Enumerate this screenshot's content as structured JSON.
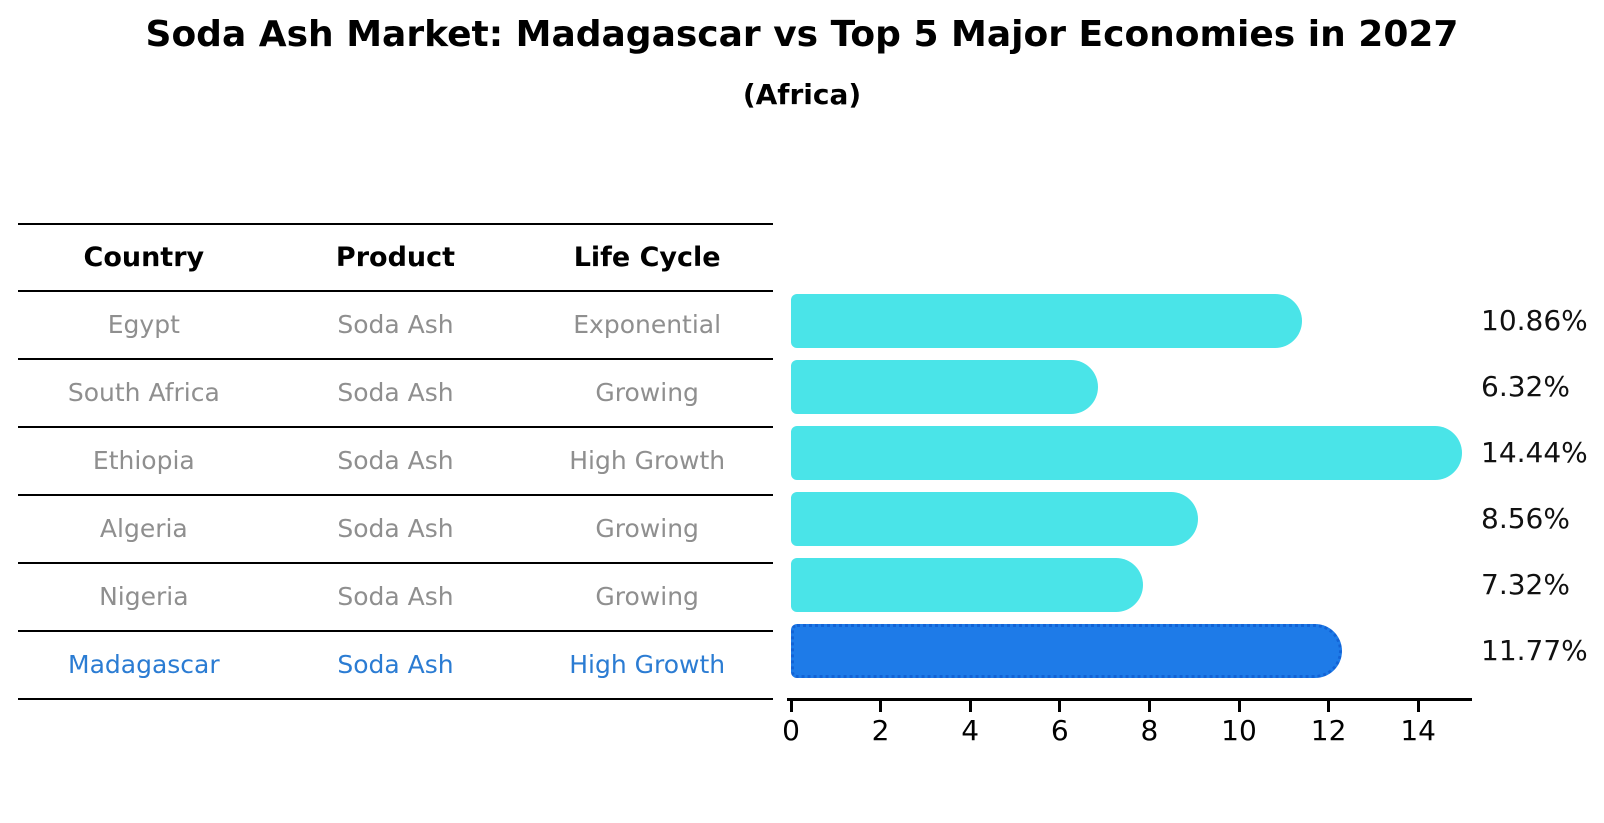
{
  "header": {
    "title": "Soda Ash Market: Madagascar vs Top 5 Major Economies in 2027",
    "subtitle": "(Africa)"
  },
  "table": {
    "columns": [
      "Country",
      "Product",
      "Life Cycle"
    ],
    "rows": [
      {
        "country": "Egypt",
        "product": "Soda Ash",
        "life_cycle": "Exponential"
      },
      {
        "country": "South Africa",
        "product": "Soda Ash",
        "life_cycle": "Growing"
      },
      {
        "country": "Ethiopia",
        "product": "Soda Ash",
        "life_cycle": "High Growth"
      },
      {
        "country": "Algeria",
        "product": "Soda Ash",
        "life_cycle": "Growing"
      },
      {
        "country": "Nigeria",
        "product": "Soda Ash",
        "life_cycle": "Growing"
      },
      {
        "country": "Madagascar",
        "product": "Soda Ash",
        "life_cycle": "High Growth"
      }
    ],
    "highlight_row": "Madagascar"
  },
  "chart_data": {
    "type": "bar",
    "orientation": "horizontal",
    "title": "Soda Ash Market: Madagascar vs Top 5 Major Economies in 2027",
    "subtitle": "(Africa)",
    "categories": [
      "Egypt",
      "South Africa",
      "Ethiopia",
      "Algeria",
      "Nigeria",
      "Madagascar"
    ],
    "values": [
      10.86,
      6.32,
      14.44,
      8.56,
      7.32,
      11.77
    ],
    "value_labels": [
      "10.86%",
      "6.32%",
      "14.44%",
      "8.56%",
      "7.32%",
      "11.77%"
    ],
    "x_ticks": [
      0,
      2,
      4,
      6,
      8,
      10,
      12,
      14
    ],
    "xlim": [
      0,
      15.3
    ],
    "highlight_index": 5,
    "grid": false,
    "legend": false
  },
  "colors": {
    "bar": "#4AE4E8",
    "highlight_bar": "#1E7BE8",
    "highlight_border": "#1263D6",
    "row_text": "#8f8f8f",
    "highlight_text": "#2B7CD3",
    "header_text": "#000000",
    "axis": "#000000",
    "value_label": "#111111"
  }
}
